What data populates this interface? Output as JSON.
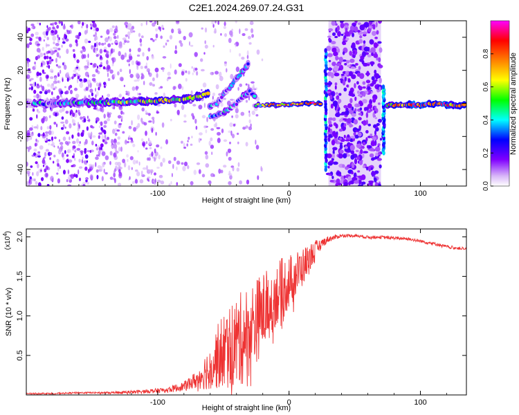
{
  "title": "C2E1.2024.269.07.24.G31",
  "chart_data": [
    {
      "type": "heatmap",
      "xlabel": "Height of straight line (km)",
      "ylabel": "Frequency (Hz)",
      "xlim": [
        -200,
        135
      ],
      "ylim": [
        -50,
        50
      ],
      "x_ticks": [
        -100,
        0,
        100
      ],
      "x_tick_labels": [
        "-100",
        "0",
        "100"
      ],
      "y_ticks": [
        -40,
        -20,
        0,
        20,
        40
      ],
      "y_tick_labels": [
        "-40",
        "-20",
        "0",
        "20",
        "40"
      ],
      "colorbar": {
        "label": "Normalized spectral amplitude",
        "range": [
          0,
          1
        ],
        "ticks": [
          0.0,
          0.2,
          0.4,
          0.6,
          0.8
        ],
        "tick_labels": [
          "0.0",
          "0.2",
          "0.4",
          "0.6",
          "0.8"
        ],
        "colormap": "rainbow",
        "colors": [
          "#ffffff",
          "#d8b8f8",
          "#8000ff",
          "#0000ff",
          "#00ffff",
          "#00ff00",
          "#ffff00",
          "#ff8000",
          "#ff0000",
          "#ff00ff"
        ]
      },
      "main_band": [
        {
          "x": -200,
          "f": 0,
          "amp": 0.28
        },
        {
          "x": -180,
          "f": 0,
          "amp": 0.35
        },
        {
          "x": -160,
          "f": 0.5,
          "amp": 0.38
        },
        {
          "x": -140,
          "f": 0.5,
          "amp": 0.45
        },
        {
          "x": -120,
          "f": 1,
          "amp": 0.5
        },
        {
          "x": -100,
          "f": 1.5,
          "amp": 0.6
        },
        {
          "x": -80,
          "f": 2.5,
          "amp": 0.6
        },
        {
          "x": -70,
          "f": 4,
          "amp": 0.65
        },
        {
          "x": -60,
          "f": 6,
          "amp": 0.55
        }
      ],
      "flat_band": [
        {
          "x": -25,
          "f": -1,
          "amp": 0.5
        },
        {
          "x": -10,
          "f": -1,
          "amp": 0.7
        },
        {
          "x": 0,
          "f": -0.5,
          "amp": 0.75
        },
        {
          "x": 10,
          "f": 0,
          "amp": 0.8
        },
        {
          "x": 20,
          "f": 0,
          "amp": 0.85
        },
        {
          "x": 25,
          "f": 0,
          "amp": 0.6
        },
        {
          "x": 75,
          "f": -1,
          "amp": 0.65
        },
        {
          "x": 90,
          "f": -1,
          "amp": 0.75
        },
        {
          "x": 100,
          "f": -1,
          "amp": 0.85
        },
        {
          "x": 110,
          "f": 0,
          "amp": 0.9
        },
        {
          "x": 125,
          "f": -1,
          "amp": 0.75
        },
        {
          "x": 135,
          "f": -1,
          "amp": 0.6
        }
      ],
      "upper_branch": [
        {
          "x": -60,
          "f": -2
        },
        {
          "x": -55,
          "f": 0
        },
        {
          "x": -50,
          "f": 5
        },
        {
          "x": -45,
          "f": 10
        },
        {
          "x": -40,
          "f": 15
        },
        {
          "x": -35,
          "f": 20
        },
        {
          "x": -30,
          "f": 25
        }
      ],
      "lower_branch": [
        {
          "x": -60,
          "f": -8
        },
        {
          "x": -50,
          "f": -6
        },
        {
          "x": -45,
          "f": -3
        },
        {
          "x": -40,
          "f": 0
        },
        {
          "x": -35,
          "f": 4
        },
        {
          "x": -30,
          "f": 7
        },
        {
          "x": -25,
          "f": 3
        }
      ],
      "noise_region": {
        "x_start": 30,
        "x_end": 70
      },
      "vertical_streaks": [
        {
          "x": 28,
          "f_min": -40,
          "f_max": 32
        },
        {
          "x": 72,
          "f_min": -30,
          "f_max": 10
        }
      ]
    },
    {
      "type": "line",
      "xlabel": "Height of straight line (km)",
      "ylabel": "SNR (10 * v/v)",
      "y_multiplier_label": "(x10",
      "y_multiplier_exponent": "4",
      "y_multiplier_suffix": ")",
      "xlim": [
        -200,
        135
      ],
      "ylim": [
        0,
        2.1
      ],
      "x_ticks": [
        -100,
        0,
        100
      ],
      "x_tick_labels": [
        "-100",
        "0",
        "100"
      ],
      "y_ticks": [
        0.5,
        1.0,
        1.5,
        2.0
      ],
      "y_tick_labels": [
        "0.5",
        "1.0",
        "1.5",
        "2.0"
      ],
      "color": "#ee3333",
      "series": [
        {
          "x": [
            -200,
            -180,
            -160,
            -140,
            -120,
            -100,
            -90,
            -80,
            -70,
            -60,
            -55,
            -50,
            -45,
            -40,
            -35,
            -30,
            -25,
            -20,
            -15,
            -10,
            -5,
            0,
            5,
            10,
            15,
            20,
            25,
            30,
            35,
            40,
            50,
            60,
            70,
            80,
            90,
            100,
            110,
            120,
            130,
            135
          ],
          "y": [
            0.02,
            0.02,
            0.03,
            0.03,
            0.04,
            0.06,
            0.08,
            0.12,
            0.22,
            0.42,
            0.55,
            0.65,
            0.72,
            0.78,
            0.85,
            0.95,
            1.05,
            1.15,
            1.25,
            1.35,
            1.42,
            1.5,
            1.58,
            1.66,
            1.76,
            1.86,
            1.93,
            1.98,
            2.0,
            2.02,
            2.02,
            2.0,
            2.0,
            1.99,
            1.98,
            1.95,
            1.92,
            1.88,
            1.86,
            1.85
          ],
          "spread": [
            0.01,
            0.01,
            0.01,
            0.01,
            0.02,
            0.03,
            0.04,
            0.06,
            0.12,
            0.3,
            0.4,
            0.5,
            0.55,
            0.6,
            0.6,
            0.6,
            0.55,
            0.5,
            0.45,
            0.4,
            0.4,
            0.35,
            0.3,
            0.25,
            0.2,
            0.12,
            0.06,
            0.04,
            0.03,
            0.02,
            0.02,
            0.02,
            0.02,
            0.02,
            0.02,
            0.02,
            0.02,
            0.02,
            0.02,
            0.02
          ]
        }
      ]
    }
  ]
}
